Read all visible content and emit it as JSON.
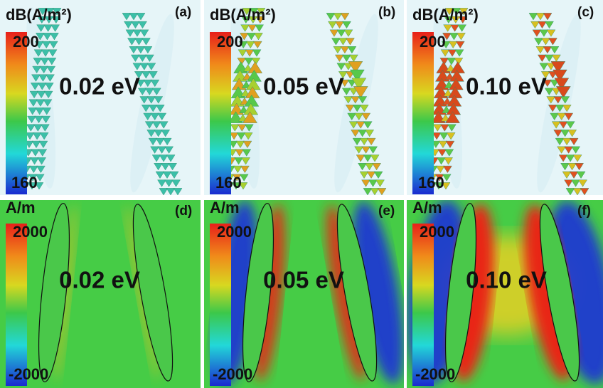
{
  "panels": [
    {
      "label": "(a)",
      "unit": "dB(A/m²)",
      "max": 200,
      "min": 160,
      "annotation": "0.02 eV"
    },
    {
      "label": "(b)",
      "unit": "dB(A/m²)",
      "max": 200,
      "min": 160,
      "annotation": "0.05 eV"
    },
    {
      "label": "(c)",
      "unit": "dB(A/m²)",
      "max": 200,
      "min": 160,
      "annotation": "0.10 eV"
    },
    {
      "label": "(d)",
      "unit": "A/m",
      "max": 2000,
      "min": -2000,
      "annotation": "0.02 eV"
    },
    {
      "label": "(e)",
      "unit": "A/m",
      "max": 2000,
      "min": -2000,
      "annotation": "0.05 eV"
    },
    {
      "label": "(f)",
      "unit": "A/m",
      "max": 2000,
      "min": -2000,
      "annotation": "0.10 eV"
    }
  ]
}
